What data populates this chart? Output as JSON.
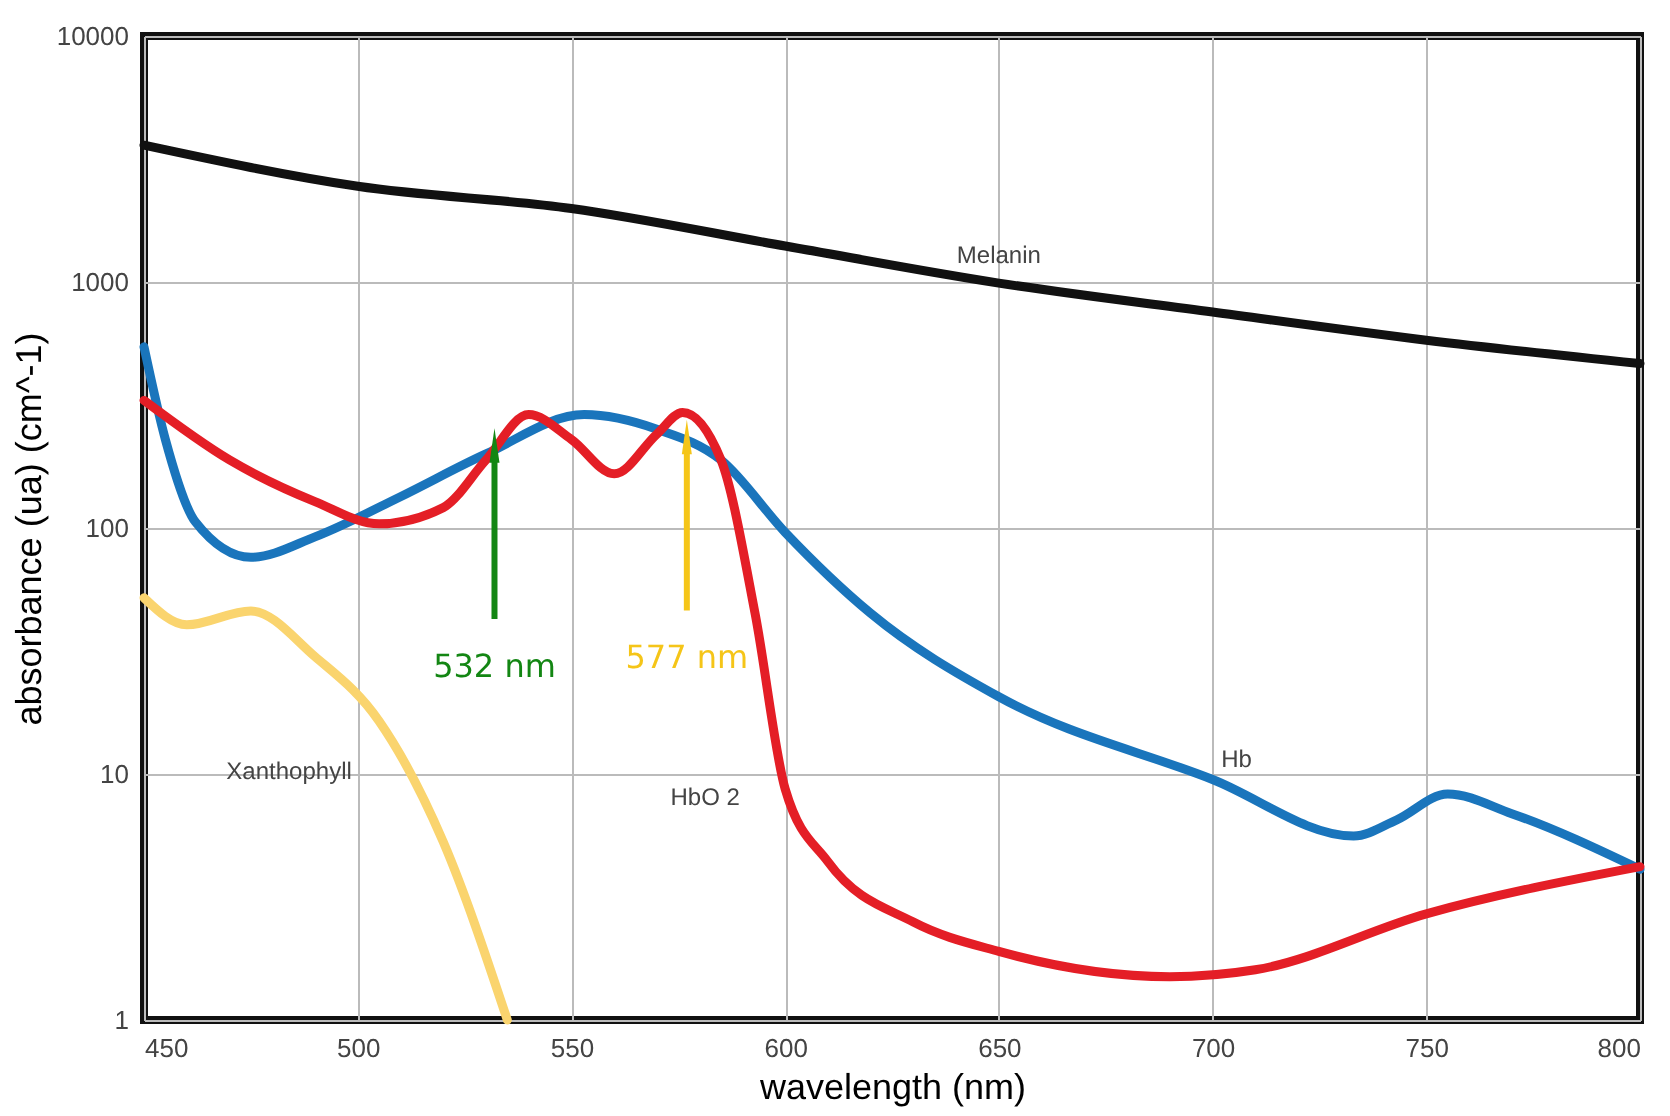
{
  "chart_data": {
    "type": "line",
    "xlabel": "wavelength (nm)",
    "ylabel": "absorbance (ua) (cm^-1)",
    "xlim": [
      450,
      800
    ],
    "xticks": [
      450,
      500,
      550,
      600,
      650,
      700,
      750,
      800
    ],
    "ylim": [
      1,
      10000
    ],
    "yticks": [
      1,
      10,
      100,
      1000,
      10000
    ],
    "log": "y",
    "grid": true,
    "legend": false,
    "marker": "none",
    "line_style": "solid",
    "series": [
      {
        "name": "Melanin",
        "color": "#111111",
        "x": [
          450,
          500,
          550,
          600,
          650,
          700,
          750,
          800
        ],
        "values": [
          3600,
          2450,
          1990,
          1400,
          990,
          755,
          580,
          466
        ]
      },
      {
        "name": "Hb",
        "color": "#1a75bc",
        "x": [
          450,
          455,
          462,
          475,
          490,
          510,
          530,
          553,
          570,
          585,
          600,
          620,
          650,
          700,
          733,
          743,
          755,
          770,
          800
        ],
        "values": [
          545,
          229,
          106,
          76,
          92,
          134,
          200,
          289,
          252,
          189,
          96,
          45,
          20.6,
          9.5,
          5.6,
          6.5,
          8.3,
          6.9,
          4.1
        ]
      },
      {
        "name": "HbO 2",
        "color": "#e41e26",
        "x": [
          450,
          470,
          490,
          505,
          520,
          530,
          540,
          550,
          560,
          570,
          576,
          585,
          593,
          600,
          610,
          630,
          650,
          690,
          710,
          750,
          800
        ],
        "values": [
          330,
          189,
          128,
          104,
          121,
          189,
          289,
          229,
          166,
          241,
          295,
          189,
          44.6,
          8.7,
          4.4,
          2.5,
          1.9,
          1.5,
          1.6,
          2.7,
          4.2
        ]
      },
      {
        "name": "Xanthophyll",
        "color": "#fad46e",
        "x": [
          450,
          460,
          475,
          490,
          505,
          520,
          535
        ],
        "values": [
          52,
          40.4,
          46,
          30,
          16.4,
          5.3,
          1
        ]
      }
    ],
    "annotations": [
      {
        "text": "532 nm",
        "x": 532,
        "y": 205
      },
      {
        "text": "577 nm",
        "x": 577,
        "y": 222
      }
    ]
  }
}
